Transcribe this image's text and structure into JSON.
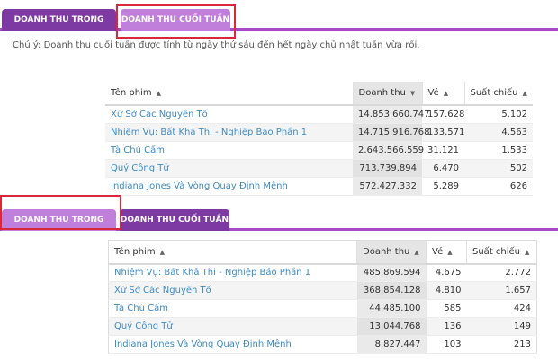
{
  "tabs": {
    "daily": "DOANH THU TRONG NGÀY",
    "weekend": "DOANH THU CUỐI TUẦN"
  },
  "weekend_panel": {
    "note": "Chú ý: Doanh thu cuối tuần được tính từ ngày thứ sáu đến hết ngày chủ nhật tuần vừa rồi.",
    "columns": [
      "Tên phim",
      "Doanh thu",
      "Vé",
      "Suất chiếu"
    ],
    "rows": [
      [
        "Xứ Sở Các Nguyên Tố",
        "14.853.660.747",
        "157.628",
        "5.102"
      ],
      [
        "Nhiệm Vụ: Bất Khả Thi - Nghiệp Báo Phần 1",
        "14.715.916.768",
        "133.571",
        "4.563"
      ],
      [
        "Tà Chú Cấm",
        "2.643.566.559",
        "31.121",
        "1.533"
      ],
      [
        "Quý Công Tử",
        "713.739.894",
        "6.470",
        "502"
      ],
      [
        "Indiana Jones Và Vòng Quay Định Mệnh",
        "572.427.332",
        "5.289",
        "626"
      ]
    ]
  },
  "daily_panel": {
    "columns": [
      "Tên phim",
      "Doanh thu",
      "Vé",
      "Suất chiếu"
    ],
    "rows": [
      [
        "Nhiệm Vụ: Bất Khả Thi - Nghiệp Báo Phần 1",
        "485.869.594",
        "4.675",
        "2.772"
      ],
      [
        "Xứ Sở Các Nguyên Tố",
        "368.854.128",
        "4.810",
        "1.657"
      ],
      [
        "Tà Chú Cấm",
        "44.485.100",
        "585",
        "424"
      ],
      [
        "Quý Công Tử",
        "13.044.768",
        "136",
        "149"
      ],
      [
        "Indiana Jones Và Vòng Quay Định Mệnh",
        "8.827.447",
        "103",
        "213"
      ]
    ]
  },
  "icons": {
    "sort_up": "▲",
    "sort_down": "▼"
  },
  "colors": {
    "tab_dark": "#7d3aa3",
    "tab_light": "#c07fdb",
    "link": "#3d8bc9",
    "highlight": "#d9283c"
  }
}
